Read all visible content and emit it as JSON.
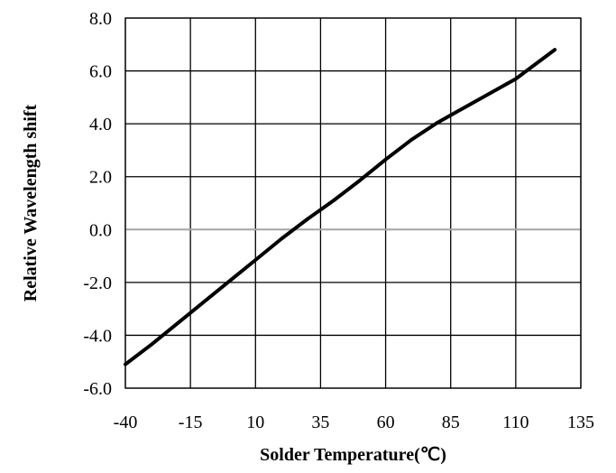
{
  "chart_data": {
    "type": "line",
    "title": "",
    "xlabel": "Solder Temperature(℃)",
    "ylabel": "Relative Wavelength shift",
    "xlim": [
      -40,
      135
    ],
    "ylim": [
      -6.0,
      8.0
    ],
    "x_ticks": [
      -40,
      -15,
      10,
      35,
      60,
      85,
      110,
      135
    ],
    "x_tick_labels": [
      "-40",
      "-15",
      "10",
      "35",
      "60",
      "85",
      "110",
      "135"
    ],
    "y_ticks": [
      -6,
      -4,
      -2,
      0,
      2,
      4,
      6,
      8
    ],
    "y_tick_labels": [
      "-6.0",
      "-4.0",
      "-2.0",
      "0.0",
      "2.0",
      "4.0",
      "6.0",
      "8.0"
    ],
    "grid": true,
    "series": [
      {
        "x": [
          -40,
          -30,
          -20,
          -10,
          0,
          10,
          20,
          30,
          40,
          50,
          60,
          70,
          80,
          90,
          100,
          110,
          125
        ],
        "y": [
          -5.1,
          -4.35,
          -3.55,
          -2.75,
          -1.95,
          -1.15,
          -0.35,
          0.4,
          1.1,
          1.85,
          2.65,
          3.4,
          4.05,
          4.6,
          5.15,
          5.7,
          6.8
        ]
      }
    ],
    "colors": {
      "line": "#000000",
      "grid": "#000000",
      "zero_line": "#a6a6a6"
    }
  }
}
